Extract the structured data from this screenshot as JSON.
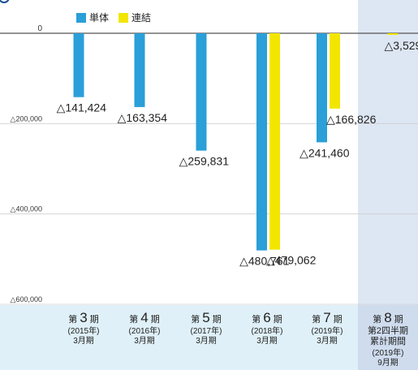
{
  "header": {
    "title": "",
    "unit": ""
  },
  "chart_data": {
    "type": "bar",
    "categories": [
      {
        "period_num": "3",
        "year": "2015",
        "month": "3月期"
      },
      {
        "period_num": "4",
        "year": "2016",
        "month": "3月期"
      },
      {
        "period_num": "5",
        "year": "2017",
        "month": "3月期"
      },
      {
        "period_num": "6",
        "year": "2018",
        "month": "3月期"
      },
      {
        "period_num": "7",
        "year": "2019",
        "month": "3月期"
      },
      {
        "period_num": "8",
        "year": "2019",
        "month": "9月期",
        "sub": "第2四半期",
        "sub2": "累計期間"
      }
    ],
    "period_prefix": "第",
    "period_suffix": "期",
    "year_suffix": "年",
    "series": [
      {
        "name": "単体",
        "color": "#2a9fd8",
        "values": [
          -141424,
          -163354,
          -259831,
          -480761,
          -241460,
          null
        ]
      },
      {
        "name": "連結",
        "color": "#f2e600",
        "values": [
          null,
          null,
          null,
          -479062,
          -166826,
          -3529
        ]
      }
    ],
    "value_labels": [
      [
        "△141,424",
        "△163,354",
        "△259,831",
        "△480,761",
        "△241,460",
        ""
      ],
      [
        "",
        "",
        "",
        "△479,062",
        "△166,826",
        "△3,529"
      ]
    ],
    "y_ticks": [
      {
        "value": 0,
        "label": "0"
      },
      {
        "value": -200000,
        "label": "△200,000"
      },
      {
        "value": -400000,
        "label": "△400,000"
      },
      {
        "value": -600000,
        "label": "△600,000"
      }
    ],
    "ylim": [
      -600000,
      0
    ],
    "highlight_category": 5,
    "legend_position": "top-left",
    "grid": true
  }
}
